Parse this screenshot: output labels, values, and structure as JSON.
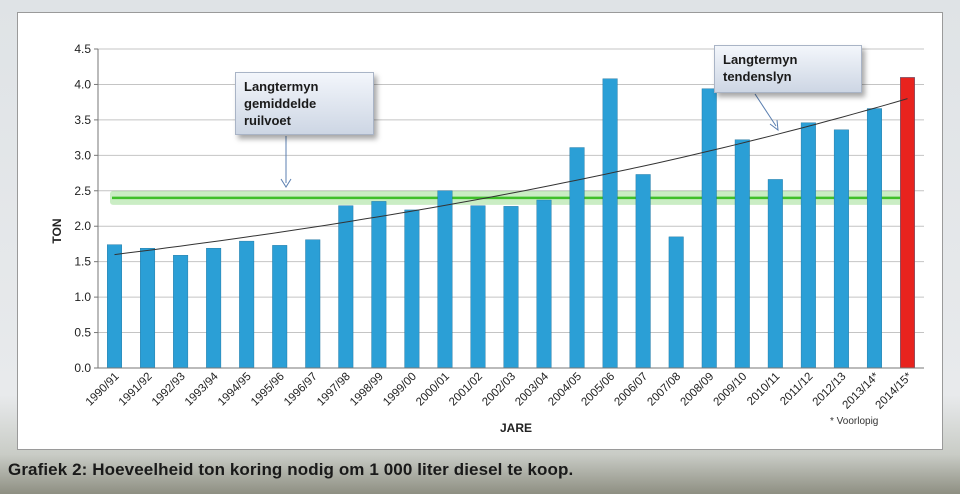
{
  "caption": "Grafiek 2: Hoeveelheid ton koring nodig om 1 000 liter diesel te koop.",
  "chart_data": {
    "type": "bar",
    "ylabel": "TON",
    "xlabel": "JARE",
    "ylim": [
      0,
      4.5
    ],
    "yticks": [
      "0.0",
      "0.5",
      "1.0",
      "1.5",
      "2.0",
      "2.5",
      "3.0",
      "3.5",
      "4.0",
      "4.5"
    ],
    "grid": true,
    "categories": [
      "1990/91",
      "1991/92",
      "1992/93",
      "1993/94",
      "1994/95",
      "1995/96",
      "1996/97",
      "1997/98",
      "1998/99",
      "1999/00",
      "2000/01",
      "2001/02",
      "2002/03",
      "2003/04",
      "2004/05",
      "2005/06",
      "2006/07",
      "2007/08",
      "2008/09",
      "2009/10",
      "2010/11",
      "2011/12",
      "2012/13",
      "2013/14*",
      "2014/15*"
    ],
    "values": [
      1.74,
      1.69,
      1.59,
      1.69,
      1.79,
      1.73,
      1.81,
      2.29,
      2.35,
      2.23,
      2.5,
      2.29,
      2.28,
      2.37,
      3.11,
      4.08,
      2.73,
      1.85,
      3.94,
      3.22,
      2.66,
      3.46,
      3.36,
      3.66,
      4.1
    ],
    "bar_color": "#2b9fd6",
    "highlight_index": 24,
    "highlight_color": "#e8231e",
    "average_line": {
      "value": 2.4,
      "color": "#3fbf2a"
    },
    "trend_line": {
      "start": 1.6,
      "end": 3.8,
      "color": "#333333"
    },
    "footnote": "* Voorlopig",
    "callouts": [
      {
        "lines": [
          "Langtermyn",
          "gemiddelde",
          "ruilvoet"
        ]
      },
      {
        "lines": [
          "Langtermyn",
          "tendenslyn"
        ]
      }
    ]
  }
}
